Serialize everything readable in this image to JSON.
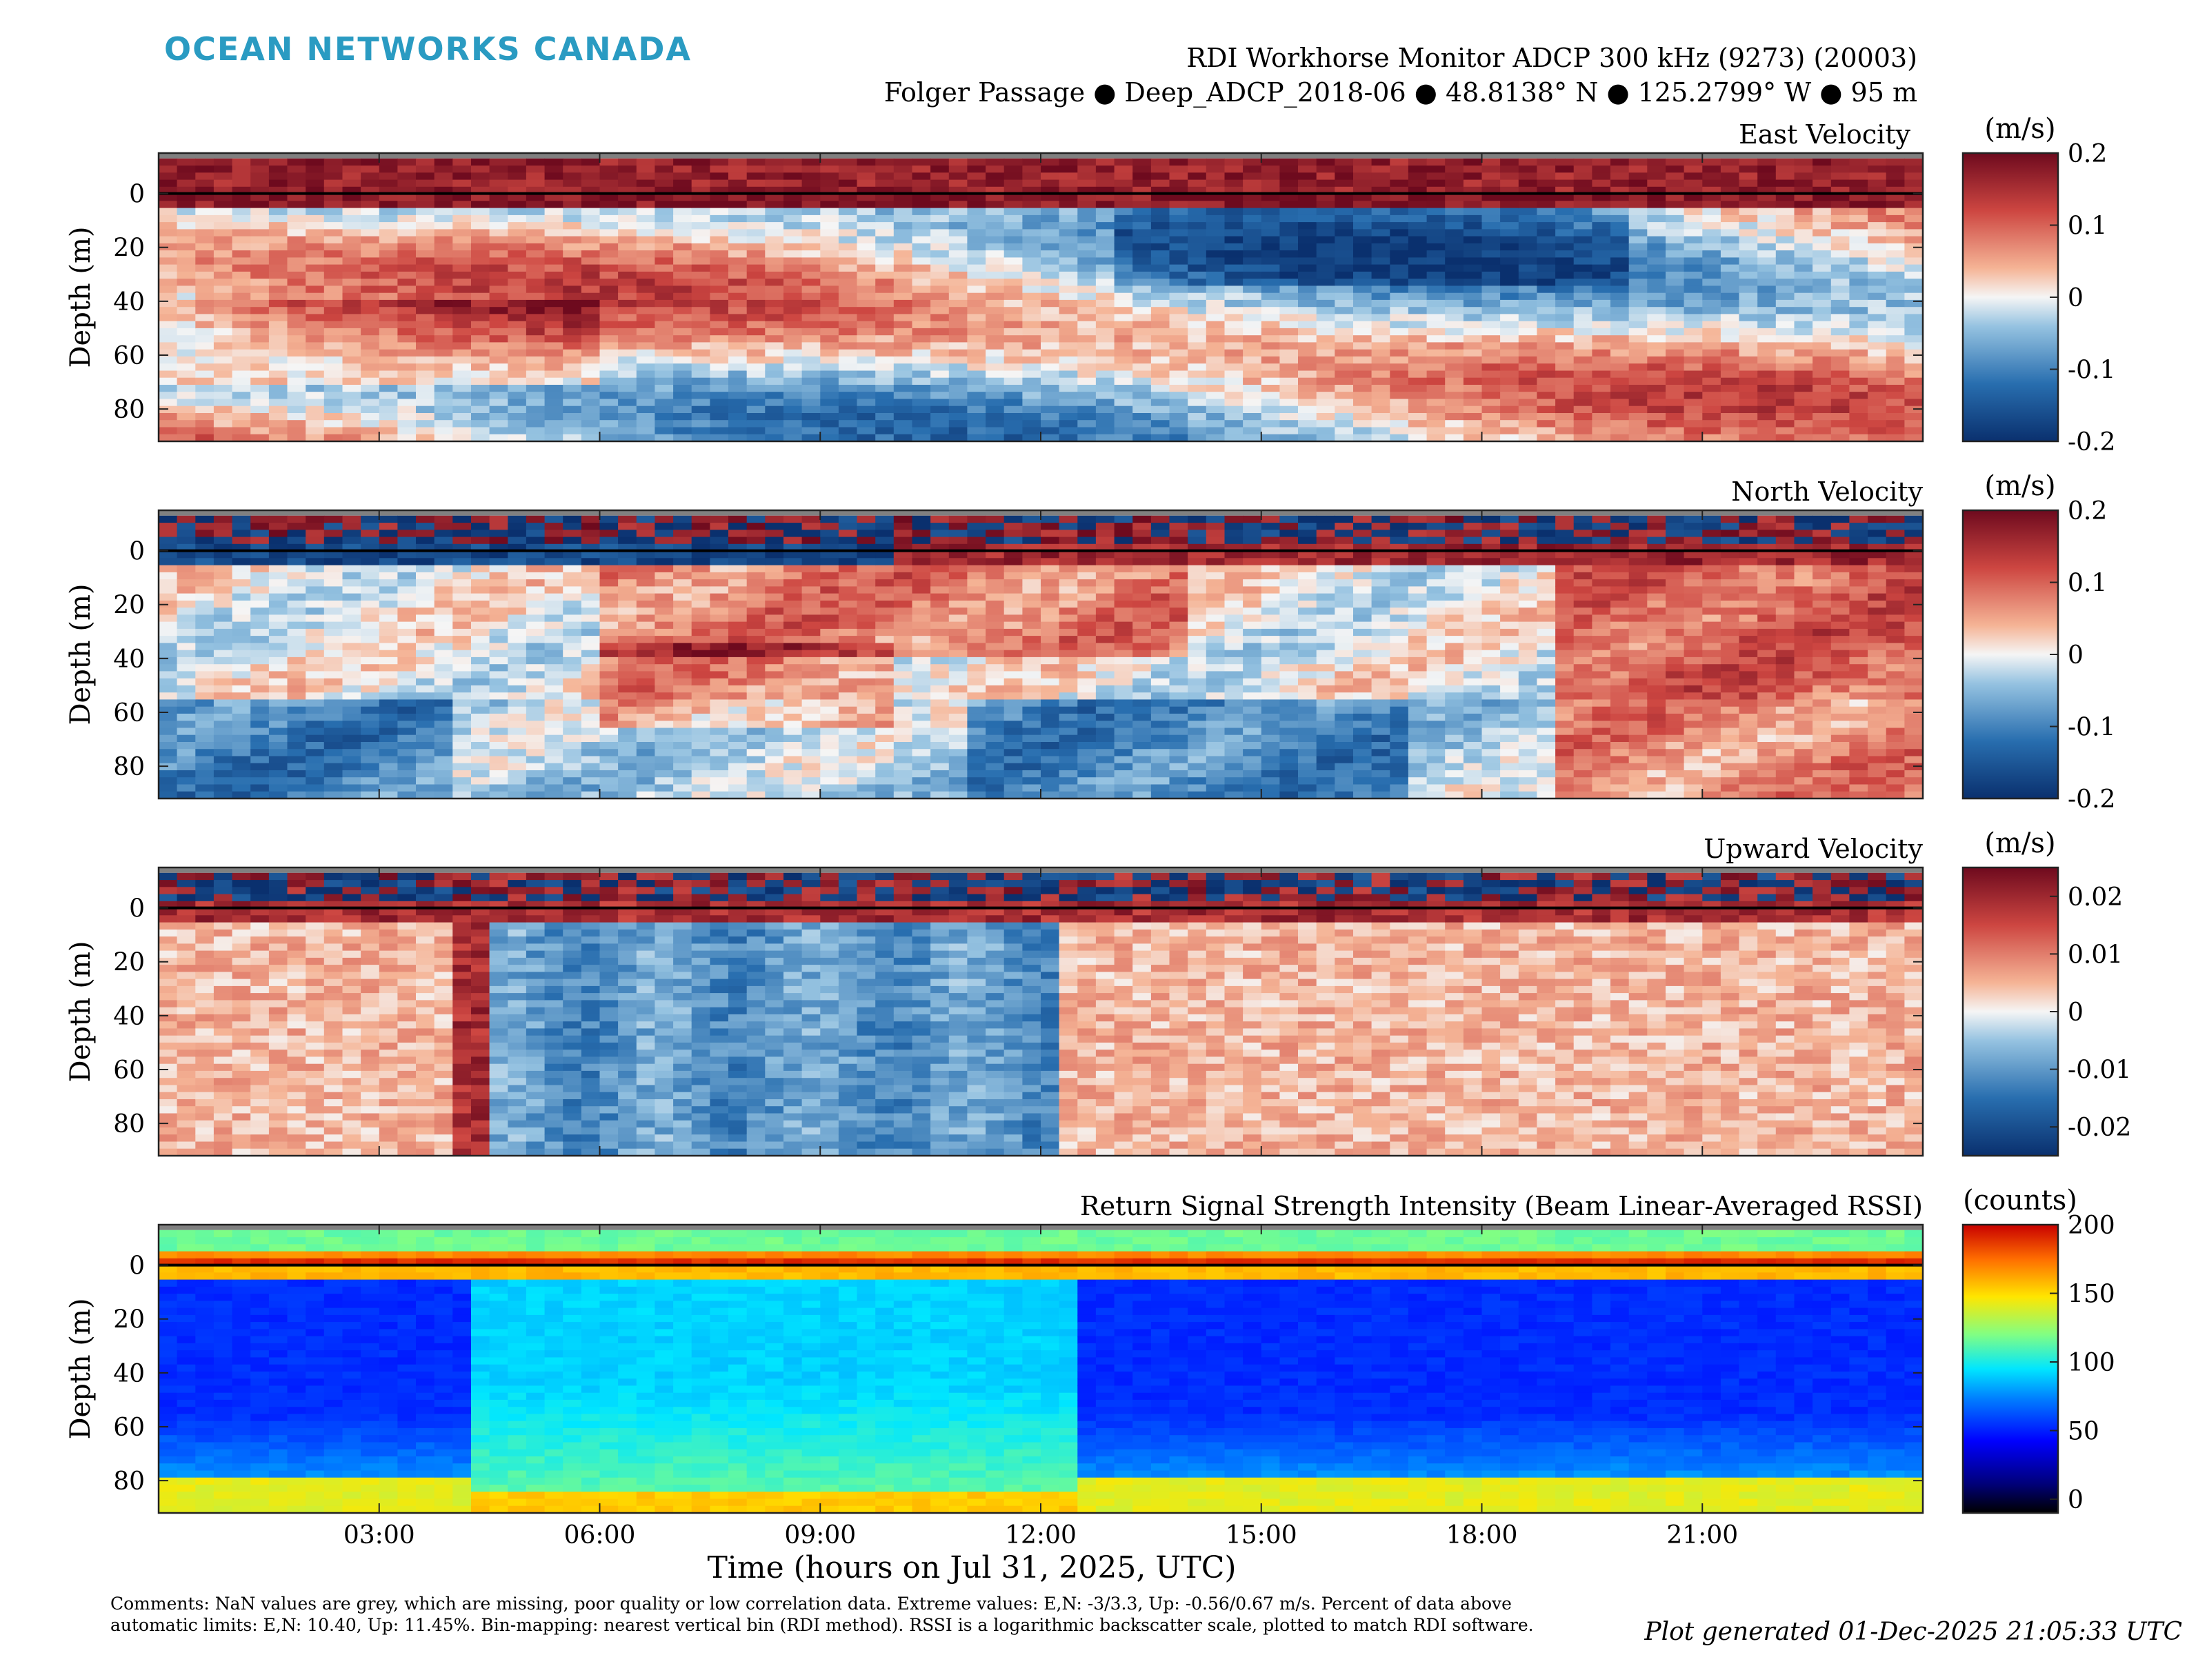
{
  "header": {
    "logo": "OCEAN NETWORKS CANADA",
    "instrument": "RDI Workhorse Monitor ADCP 300 kHz (9273) (20003)",
    "location": "Folger Passage ● Deep_ADCP_2018-06 ● 48.8138° N ● 125.2799° W ● 95 m"
  },
  "footer": {
    "comments": "Comments: NaN values are grey, which are missing, poor quality or low correlation data. Extreme values: E,N: -3/3.3, Up: -0.56/0.67 m/s. Percent of data above automatic limits: E,N: 10.40, Up: 11.45%. Bin-mapping: nearest vertical bin (RDI method). RSSI is a logarithmic backscatter scale, plotted to match RDI software.",
    "generated": "Plot generated 01-Dec-2025 21:05:33 UTC"
  },
  "chart_data": [
    {
      "type": "heatmap",
      "title": "East Velocity",
      "ylabel": "Depth (m)",
      "xlabel": "",
      "x_range_hours": [
        0,
        24
      ],
      "y_range_m": [
        -15,
        92
      ],
      "yticks": [
        "0",
        "20",
        "40",
        "60",
        "80"
      ],
      "xticks": [
        "03:00",
        "06:00",
        "09:00",
        "12:00",
        "15:00",
        "18:00",
        "21:00"
      ],
      "colorbar_label": "(m/s)",
      "colorbar_ticks": [
        "0.2",
        "0.1",
        "0",
        "-0.1",
        "-0.2"
      ],
      "colormap": "diverging red-blue",
      "clim": [
        -0.2,
        0.2
      ]
    },
    {
      "type": "heatmap",
      "title": "North Velocity",
      "ylabel": "Depth (m)",
      "xlabel": "",
      "x_range_hours": [
        0,
        24
      ],
      "y_range_m": [
        -15,
        92
      ],
      "yticks": [
        "0",
        "20",
        "40",
        "60",
        "80"
      ],
      "xticks": [
        "03:00",
        "06:00",
        "09:00",
        "12:00",
        "15:00",
        "18:00",
        "21:00"
      ],
      "colorbar_label": "(m/s)",
      "colorbar_ticks": [
        "0.2",
        "0.1",
        "0",
        "-0.1",
        "-0.2"
      ],
      "colormap": "diverging red-blue",
      "clim": [
        -0.2,
        0.2
      ]
    },
    {
      "type": "heatmap",
      "title": "Upward Velocity",
      "ylabel": "Depth (m)",
      "xlabel": "",
      "x_range_hours": [
        0,
        24
      ],
      "y_range_m": [
        -15,
        92
      ],
      "yticks": [
        "0",
        "20",
        "40",
        "60",
        "80"
      ],
      "xticks": [
        "03:00",
        "06:00",
        "09:00",
        "12:00",
        "15:00",
        "18:00",
        "21:00"
      ],
      "colorbar_label": "(m/s)",
      "colorbar_ticks": [
        "0.02",
        "0.01",
        "0",
        "-0.01",
        "-0.02"
      ],
      "colormap": "diverging red-blue",
      "clim": [
        -0.025,
        0.025
      ]
    },
    {
      "type": "heatmap",
      "title": "Return Signal Strength Intensity (Beam Linear-Averaged RSSI)",
      "ylabel": "Depth (m)",
      "xlabel": "Time (hours on Jul 31, 2025, UTC)",
      "x_range_hours": [
        0,
        24
      ],
      "y_range_m": [
        -15,
        92
      ],
      "yticks": [
        "0",
        "20",
        "40",
        "60",
        "80"
      ],
      "xticks": [
        "03:00",
        "06:00",
        "09:00",
        "12:00",
        "15:00",
        "18:00",
        "21:00"
      ],
      "colorbar_label": "(counts)",
      "colorbar_ticks": [
        "200",
        "150",
        "100",
        "50",
        "0"
      ],
      "colormap": "jet",
      "clim": [
        -10,
        200
      ]
    }
  ]
}
